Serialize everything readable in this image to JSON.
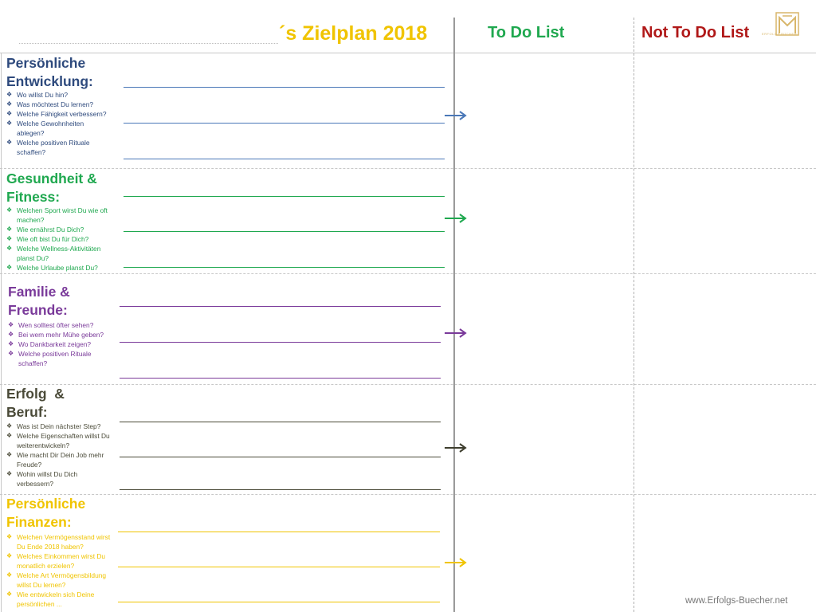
{
  "header": {
    "title": "´s Zielplan 2018",
    "todo": "To Do List",
    "not_todo": "Not To Do List",
    "logo_text": "ERFOLGS BÜCHER"
  },
  "colors": {
    "blue": "#2e4a7d",
    "green": "#1fa84f",
    "purple": "#7a3a9a",
    "olive": "#4a4a38",
    "yellow": "#f0c400",
    "arrow_blue": "#4a78b8",
    "arrow_green": "#1fa84f",
    "arrow_purple": "#7a3a9a",
    "arrow_dark": "#3e3e2e",
    "arrow_yellow": "#f0c400",
    "todo": "#1fa84f",
    "not_todo": "#b01818"
  },
  "sections": [
    {
      "title1": "Persönliche",
      "title2": "Entwicklung:",
      "questions": [
        "Wo willst Du hin?",
        "Was möchtest Du lernen?",
        "Welche Fähigkeit verbessern?",
        "Welche Gewohnheiten ablegen?",
        "Welche positiven Rituale schaffen?"
      ]
    },
    {
      "title1": "Gesundheit &",
      "title2": "Fitness:",
      "questions": [
        "Welchen Sport wirst Du wie oft machen?",
        "Wie ernährst Du Dich?",
        "Wie oft bist Du für Dich?",
        "Welche Wellness-Aktivitäten planst Du?",
        "Welche Urlaube planst Du?"
      ]
    },
    {
      "title1": "Familie &",
      "title2": "Freunde:",
      "questions": [
        "Wen solltest öfter sehen?",
        "Bei wem mehr Mühe geben?",
        "Wo Dankbarkeit zeigen?",
        "Welche positiven Rituale schaffen?"
      ]
    },
    {
      "title1": "Erfolg  &",
      "title2": "Beruf:",
      "questions": [
        "Was ist Dein nächster Step?",
        "Welche Eigenschaften willst Du weiterentwickeln?",
        "Wie macht Dir Dein Job mehr Freude?",
        "Wohin willst Du Dich verbessern?"
      ]
    },
    {
      "title1": "Persönliche",
      "title2": "Finanzen:",
      "questions": [
        "Welchen Vermögensstand wirst Du Ende 2018 haben?",
        "Welches Einkommen wirst Du monatlich erzielen?",
        "Welche Art Vermögensbildung willst Du lernen?",
        "Wie entwickeln sich Deine persönlichen ..."
      ]
    }
  ],
  "footer": "www.Erfolgs-Buecher.net"
}
